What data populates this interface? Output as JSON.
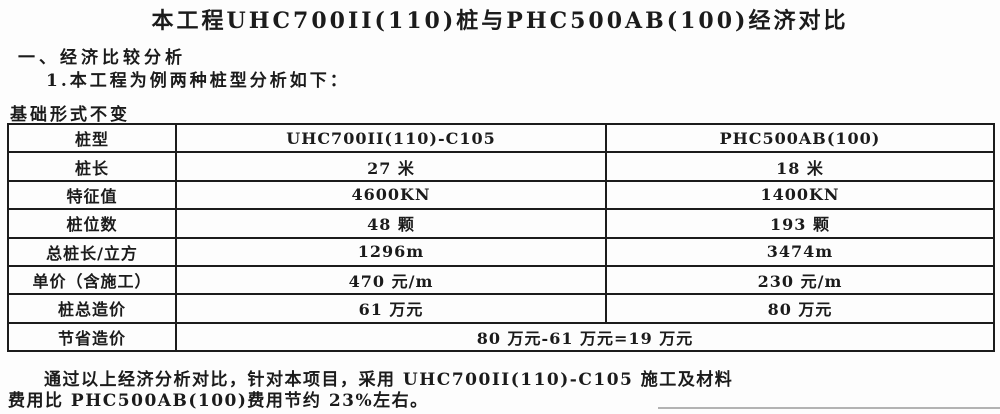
{
  "page": {
    "title": "本工程UHC700II(110)桩与PHC500AB(100)经济对比",
    "section_heading": "一、经济比较分析",
    "sub_heading": "1.本工程为例两种桩型分析如下：",
    "table_caption": "基础形式不变"
  },
  "table": {
    "header": [
      "桩型",
      "UHC700II(110)-C105",
      "PHC500AB(100)"
    ],
    "rows": [
      {
        "label": "桩长",
        "uhc": "27 米",
        "phc": "18 米"
      },
      {
        "label": "特征值",
        "uhc": "4600KN",
        "phc": "1400KN"
      },
      {
        "label": "桩位数",
        "uhc": "48 颗",
        "phc": "193 颗"
      },
      {
        "label": "总桩长/立方",
        "uhc": "1296m",
        "phc": "3474m"
      },
      {
        "label": "单价（含施工）",
        "uhc": "470 元/m",
        "phc": "230 元/m"
      },
      {
        "label": "桩总造价",
        "uhc": "61 万元",
        "phc": "80 万元"
      }
    ],
    "summary_row": {
      "label": "节省造价",
      "value": "80 万元-61 万元=19 万元"
    }
  },
  "conclusion": {
    "line1": "通过以上经济分析对比，针对本项目，采用 UHC700II(110)-C105 施工及材料",
    "line2": "费用比 PHC500AB(100)费用节约 23%左右。"
  },
  "colors": {
    "text": "#1b1b1b",
    "table_border": "#1c1c1c",
    "partial_line_gray": "#b3b3b3",
    "background": "#fdfdfd"
  }
}
